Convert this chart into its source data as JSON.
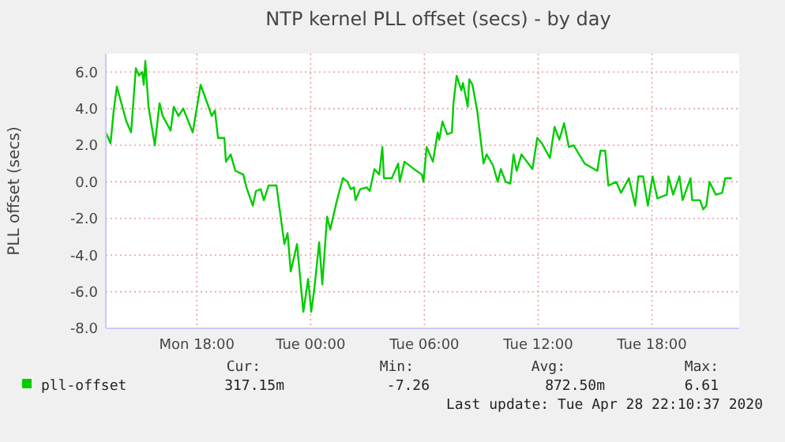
{
  "chart_data": {
    "type": "line",
    "title": "NTP kernel PLL offset (secs) - by day",
    "ylabel": "PLL offset (secs)",
    "x": [
      "2020-04-27T13:12",
      "2020-04-27T13:27",
      "2020-04-27T13:37",
      "2020-04-27T13:47",
      "2020-04-27T14:17",
      "2020-04-27T14:32",
      "2020-04-27T14:47",
      "2020-04-27T14:57",
      "2020-04-27T15:07",
      "2020-04-27T15:12",
      "2020-04-27T15:17",
      "2020-04-27T15:27",
      "2020-04-27T15:47",
      "2020-04-27T16:02",
      "2020-04-27T16:12",
      "2020-04-27T16:37",
      "2020-04-27T16:47",
      "2020-04-27T17:02",
      "2020-04-27T17:17",
      "2020-04-27T17:47",
      "2020-04-27T18:12",
      "2020-04-27T18:37",
      "2020-04-27T18:47",
      "2020-04-27T18:57",
      "2020-04-27T19:07",
      "2020-04-27T19:27",
      "2020-04-27T19:32",
      "2020-04-27T19:47",
      "2020-04-27T20:02",
      "2020-04-27T20:27",
      "2020-04-27T20:37",
      "2020-04-27T20:57",
      "2020-04-27T21:07",
      "2020-04-27T21:22",
      "2020-04-27T21:32",
      "2020-04-27T21:47",
      "2020-04-27T22:12",
      "2020-04-27T22:22",
      "2020-04-27T22:37",
      "2020-04-27T22:47",
      "2020-04-27T22:57",
      "2020-04-27T23:17",
      "2020-04-27T23:37",
      "2020-04-27T23:52",
      "2020-04-28T00:02",
      "2020-04-28T00:12",
      "2020-04-28T00:27",
      "2020-04-28T00:37",
      "2020-04-28T00:52",
      "2020-04-28T01:02",
      "2020-04-28T01:22",
      "2020-04-28T01:42",
      "2020-04-28T01:57",
      "2020-04-28T02:07",
      "2020-04-28T02:17",
      "2020-04-28T02:22",
      "2020-04-28T02:37",
      "2020-04-28T02:57",
      "2020-04-28T03:07",
      "2020-04-28T03:22",
      "2020-04-28T03:37",
      "2020-04-28T03:47",
      "2020-04-28T03:52",
      "2020-04-28T04:17",
      "2020-04-28T04:37",
      "2020-04-28T04:42",
      "2020-04-28T04:57",
      "2020-04-28T05:27",
      "2020-04-28T05:52",
      "2020-04-28T05:57",
      "2020-04-28T06:07",
      "2020-04-28T06:27",
      "2020-04-28T06:42",
      "2020-04-28T06:47",
      "2020-04-28T06:57",
      "2020-04-28T07:12",
      "2020-04-28T07:27",
      "2020-04-28T07:32",
      "2020-04-28T07:42",
      "2020-04-28T07:57",
      "2020-04-28T08:02",
      "2020-04-28T08:17",
      "2020-04-28T08:22",
      "2020-04-28T08:32",
      "2020-04-28T08:47",
      "2020-04-28T09:07",
      "2020-04-28T09:17",
      "2020-04-28T09:37",
      "2020-04-28T09:52",
      "2020-04-28T10:02",
      "2020-04-28T10:17",
      "2020-04-28T10:32",
      "2020-04-28T10:42",
      "2020-04-28T10:52",
      "2020-04-28T11:07",
      "2020-04-28T11:42",
      "2020-04-28T11:57",
      "2020-04-28T12:12",
      "2020-04-28T12:37",
      "2020-04-28T12:52",
      "2020-04-28T13:07",
      "2020-04-28T13:22",
      "2020-04-28T13:37",
      "2020-04-28T13:52",
      "2020-04-28T14:27",
      "2020-04-28T15:07",
      "2020-04-28T15:17",
      "2020-04-28T15:32",
      "2020-04-28T15:42",
      "2020-04-28T16:07",
      "2020-04-28T16:22",
      "2020-04-28T16:47",
      "2020-04-28T17:07",
      "2020-04-28T17:17",
      "2020-04-28T17:32",
      "2020-04-28T17:47",
      "2020-04-28T18:02",
      "2020-04-28T18:17",
      "2020-04-28T18:47",
      "2020-04-28T18:52",
      "2020-04-28T19:07",
      "2020-04-28T19:27",
      "2020-04-28T19:37",
      "2020-04-28T20:02",
      "2020-04-28T20:07",
      "2020-04-28T20:32",
      "2020-04-28T20:42",
      "2020-04-28T20:52",
      "2020-04-28T21:02",
      "2020-04-28T21:22",
      "2020-04-28T21:42",
      "2020-04-28T21:52",
      "2020-04-28T22:10"
    ],
    "series": [
      {
        "name": "pll-offset",
        "color": "#00cc00",
        "values": [
          2.7,
          2.1,
          3.9,
          5.2,
          3.3,
          2.7,
          6.2,
          5.8,
          6.0,
          5.3,
          6.6,
          4.1,
          2.0,
          4.3,
          3.6,
          2.8,
          4.1,
          3.6,
          4.0,
          2.7,
          5.3,
          4.1,
          3.6,
          3.9,
          2.4,
          2.4,
          1.1,
          1.5,
          0.6,
          0.4,
          -0.3,
          -1.3,
          -0.5,
          -0.4,
          -1.0,
          -0.2,
          -0.2,
          -1.5,
          -3.4,
          -2.8,
          -4.9,
          -3.4,
          -7.1,
          -5.3,
          -7.1,
          -5.8,
          -3.3,
          -5.6,
          -1.9,
          -2.6,
          -1.1,
          0.2,
          0.0,
          -0.4,
          -0.3,
          -1.0,
          -0.4,
          -0.3,
          -0.5,
          0.7,
          0.4,
          1.9,
          0.2,
          0.2,
          1.0,
          0.0,
          1.1,
          0.7,
          0.4,
          0.0,
          1.9,
          1.1,
          2.7,
          2.3,
          3.3,
          2.6,
          2.7,
          4.3,
          5.8,
          5.0,
          5.4,
          4.1,
          5.6,
          5.3,
          3.9,
          1.0,
          1.5,
          0.9,
          0.0,
          0.7,
          0.0,
          -0.1,
          1.5,
          0.6,
          1.5,
          0.7,
          2.4,
          2.1,
          1.3,
          3.0,
          2.3,
          3.2,
          1.9,
          2.0,
          1.0,
          0.6,
          1.7,
          1.7,
          -0.2,
          0.0,
          -0.6,
          0.2,
          -1.3,
          0.3,
          0.3,
          -1.3,
          0.3,
          -0.9,
          -0.7,
          0.3,
          -0.7,
          0.3,
          -1.0,
          0.2,
          -1.0,
          -1.0,
          -1.5,
          -1.3,
          0.0,
          -0.7,
          -0.6,
          0.2,
          0.2
        ]
      }
    ],
    "xlim": [
      "2020-04-27T13:12",
      "2020-04-28T22:36"
    ],
    "xticks": [
      {
        "value": "2020-04-27T18:00",
        "label": "Mon 18:00"
      },
      {
        "value": "2020-04-28T00:00",
        "label": "Tue 00:00"
      },
      {
        "value": "2020-04-28T06:00",
        "label": "Tue 06:00"
      },
      {
        "value": "2020-04-28T12:00",
        "label": "Tue 12:00"
      },
      {
        "value": "2020-04-28T18:00",
        "label": "Tue 18:00"
      }
    ],
    "ylim": [
      -8,
      7
    ],
    "yticks": [
      {
        "value": -8,
        "label": "-8.0"
      },
      {
        "value": -6,
        "label": "-6.0"
      },
      {
        "value": -4,
        "label": "-4.0"
      },
      {
        "value": -2,
        "label": "-2.0"
      },
      {
        "value": 0,
        "label": "0.0"
      },
      {
        "value": 2,
        "label": "2.0"
      },
      {
        "value": 4,
        "label": "4.0"
      },
      {
        "value": 6,
        "label": "6.0"
      }
    ],
    "grid": true,
    "legend": "bottom left",
    "annotations": [
      "Cur:",
      "Min:",
      "Avg:",
      "Max:",
      "317.15m",
      "-7.26",
      "872.50m",
      "6.61",
      "Last update: Tue Apr 28 22:10:37 2020"
    ]
  }
}
